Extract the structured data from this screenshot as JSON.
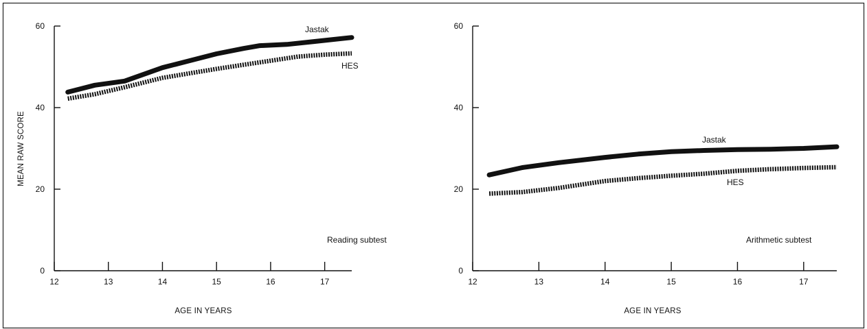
{
  "chart_data": [
    {
      "type": "line",
      "subtitle": "Reading subtest",
      "xlabel": "AGE IN YEARS",
      "ylabel": "MEAN RAW SCORE",
      "xlim": [
        12,
        17.5
      ],
      "ylim": [
        0,
        60
      ],
      "xticks": [
        12,
        13,
        14,
        15,
        16,
        17
      ],
      "yticks": [
        0,
        20,
        40,
        60
      ],
      "grid": false,
      "series": [
        {
          "name": "Jastak",
          "style": "solid",
          "color": "#111111",
          "x": [
            12.25,
            12.75,
            13.3,
            14.0,
            14.5,
            15.0,
            15.5,
            15.8,
            16.3,
            16.8,
            17.5
          ],
          "y": [
            43.8,
            45.5,
            46.5,
            49.8,
            51.5,
            53.2,
            54.5,
            55.2,
            55.5,
            56.2,
            57.2
          ]
        },
        {
          "name": "HES",
          "style": "dotted",
          "color": "#111111",
          "x": [
            12.25,
            12.75,
            13.3,
            14.0,
            14.5,
            15.0,
            15.5,
            16.0,
            16.5,
            17.0,
            17.5
          ],
          "y": [
            42.2,
            43.3,
            45.0,
            47.3,
            48.4,
            49.5,
            50.5,
            51.5,
            52.5,
            53.0,
            53.3
          ]
        }
      ]
    },
    {
      "type": "line",
      "subtitle": "Arithmetic subtest",
      "xlabel": "AGE IN YEARS",
      "ylabel": "",
      "xlim": [
        12,
        17.5
      ],
      "ylim": [
        0,
        60
      ],
      "xticks": [
        12,
        13,
        14,
        15,
        16,
        17
      ],
      "yticks": [
        0,
        20,
        40,
        60
      ],
      "grid": false,
      "series": [
        {
          "name": "Jastak",
          "style": "solid",
          "color": "#111111",
          "x": [
            12.25,
            12.75,
            13.3,
            14.0,
            14.5,
            15.0,
            15.5,
            16.0,
            16.5,
            17.0,
            17.5
          ],
          "y": [
            23.5,
            25.3,
            26.5,
            27.8,
            28.6,
            29.2,
            29.5,
            29.7,
            29.8,
            30.0,
            30.4
          ]
        },
        {
          "name": "HES",
          "style": "dotted",
          "color": "#111111",
          "x": [
            12.25,
            12.75,
            13.3,
            14.0,
            14.5,
            15.0,
            15.5,
            16.0,
            16.5,
            17.0,
            17.5
          ],
          "y": [
            18.9,
            19.3,
            20.3,
            22.0,
            22.7,
            23.3,
            23.8,
            24.5,
            24.9,
            25.2,
            25.4
          ]
        }
      ]
    }
  ]
}
